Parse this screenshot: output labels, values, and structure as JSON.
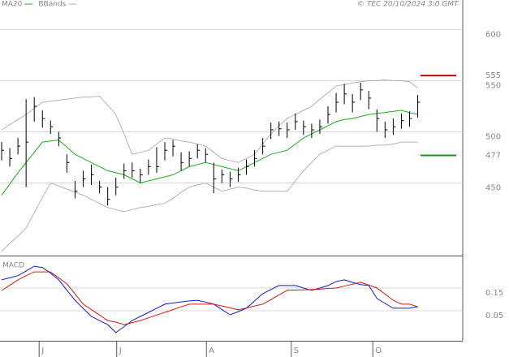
{
  "header": {
    "source": "© TEC 20/10/2024 3:0 GMT"
  },
  "chart_data": [
    {
      "type": "ohlc",
      "high": [
        490,
        484,
        494,
        532,
        534,
        521,
        511,
        500,
        478,
        452,
        462,
        468,
        452,
        446,
        455,
        469,
        470,
        464,
        473,
        485,
        490,
        492,
        480,
        481,
        488,
        484,
        470,
        463,
        461,
        465,
        473,
        482,
        494,
        509,
        510,
        509,
        518,
        511,
        508,
        512,
        525,
        538,
        547,
        537,
        548,
        540,
        522,
        510,
        513,
        518,
        520,
        536
      ],
      "low": [
        472,
        466,
        478,
        446,
        510,
        504,
        498,
        486,
        460,
        435,
        446,
        448,
        440,
        428,
        438,
        454,
        455,
        450,
        458,
        460,
        472,
        476,
        462,
        466,
        474,
        470,
        440,
        450,
        446,
        451,
        458,
        466,
        478,
        493,
        496,
        494,
        502,
        497,
        494,
        498,
        508,
        519,
        527,
        519,
        531,
        522,
        500,
        494,
        497,
        503,
        505,
        514
      ],
      "close": [
        482,
        474,
        486,
        490,
        525,
        513,
        505,
        494,
        470,
        442,
        454,
        458,
        446,
        434,
        446,
        462,
        462,
        458,
        466,
        466,
        482,
        486,
        470,
        474,
        482,
        478,
        454,
        458,
        454,
        458,
        466,
        474,
        486,
        502,
        503,
        502,
        510,
        505,
        502,
        505,
        517,
        529,
        537,
        529,
        541,
        533,
        513,
        502,
        505,
        511,
        513,
        529
      ],
      "color": "#000000",
      "series": [
        {
          "name": "MA20",
          "color": "#22a822",
          "values": [
            438,
            449,
            460,
            470,
            480,
            490,
            491,
            492,
            485,
            478,
            474,
            470,
            466,
            462,
            460,
            458,
            454,
            450,
            452,
            454,
            456,
            458,
            462,
            466,
            468,
            470,
            468,
            466,
            464,
            462,
            466,
            470,
            474,
            478,
            480,
            482,
            488,
            494,
            498,
            502,
            506,
            510,
            512,
            513,
            515,
            517,
            518,
            519,
            520,
            521,
            519,
            517
          ]
        },
        {
          "name": "BBands",
          "color": "#b4b4b4",
          "upper": [
            502,
            507,
            512,
            517,
            523,
            529,
            530,
            531,
            532,
            533,
            534,
            534,
            535,
            526,
            517,
            498,
            478,
            480,
            482,
            488,
            494,
            493,
            491,
            490,
            488,
            486,
            480,
            474,
            472,
            470,
            474,
            478,
            488,
            498,
            506,
            513,
            517,
            521,
            525,
            532,
            538,
            545,
            546,
            548,
            549,
            550,
            550,
            551,
            550,
            550,
            549,
            543
          ],
          "lower": [
            383,
            391,
            398,
            406,
            421,
            436,
            450,
            447,
            444,
            441,
            438,
            434,
            430,
            426,
            424,
            422,
            424,
            426,
            427,
            429,
            430,
            435,
            441,
            446,
            448,
            450,
            446,
            442,
            444,
            446,
            445,
            443,
            442,
            442,
            442,
            442,
            452,
            462,
            470,
            478,
            482,
            486,
            486,
            486,
            486,
            486,
            487,
            487,
            488,
            490,
            490,
            490
          ]
        }
      ],
      "annotations": [
        {
          "value": 555,
          "color": "#cc0000"
        },
        {
          "value": 477,
          "color": "#119911"
        }
      ],
      "ylim": [
        379,
        621
      ],
      "yticks": [
        450,
        500,
        550,
        600
      ],
      "grid": true,
      "xticks": [
        {
          "value": 4.6,
          "label": "J"
        },
        {
          "value": 14.1,
          "label": "J"
        },
        {
          "value": 25.1,
          "label": "A"
        },
        {
          "value": 35.5,
          "label": "S"
        },
        {
          "value": 45.5,
          "label": "O"
        }
      ]
    },
    {
      "type": "line",
      "title": "MACD",
      "series": [
        {
          "color": "#1a1acc",
          "values": [
            0.186,
            0.195,
            0.204,
            0.225,
            0.246,
            0.24,
            0.215,
            0.186,
            0.14,
            0.096,
            0.06,
            0.025,
            0.007,
            -0.011,
            -0.046,
            -0.02,
            0.007,
            0.025,
            0.043,
            0.061,
            0.079,
            0.084,
            0.089,
            0.093,
            0.096,
            0.088,
            0.079,
            0.055,
            0.032,
            0.046,
            0.061,
            0.093,
            0.125,
            0.143,
            0.161,
            0.161,
            0.161,
            0.15,
            0.14,
            0.15,
            0.161,
            0.178,
            0.186,
            0.175,
            0.165,
            0.161,
            0.104,
            0.082,
            0.061,
            0.061,
            0.061,
            0.068
          ]
        },
        {
          "color": "#cc1a1a",
          "values": [
            0.139,
            0.162,
            0.186,
            0.204,
            0.221,
            0.221,
            0.221,
            0.195,
            0.168,
            0.124,
            0.079,
            0.055,
            0.031,
            0.007,
            0.0,
            -0.011,
            -0.002,
            0.007,
            0.019,
            0.031,
            0.043,
            0.055,
            0.067,
            0.079,
            0.079,
            0.079,
            0.079,
            0.071,
            0.063,
            0.054,
            0.062,
            0.071,
            0.079,
            0.099,
            0.12,
            0.14,
            0.141,
            0.142,
            0.143,
            0.145,
            0.148,
            0.15,
            0.158,
            0.167,
            0.175,
            0.163,
            0.15,
            0.123,
            0.096,
            0.079,
            0.079,
            0.068
          ]
        }
      ],
      "ylim": [
        -0.082,
        0.289
      ],
      "yticks": [
        0.05,
        0.15
      ],
      "grid": true
    }
  ]
}
